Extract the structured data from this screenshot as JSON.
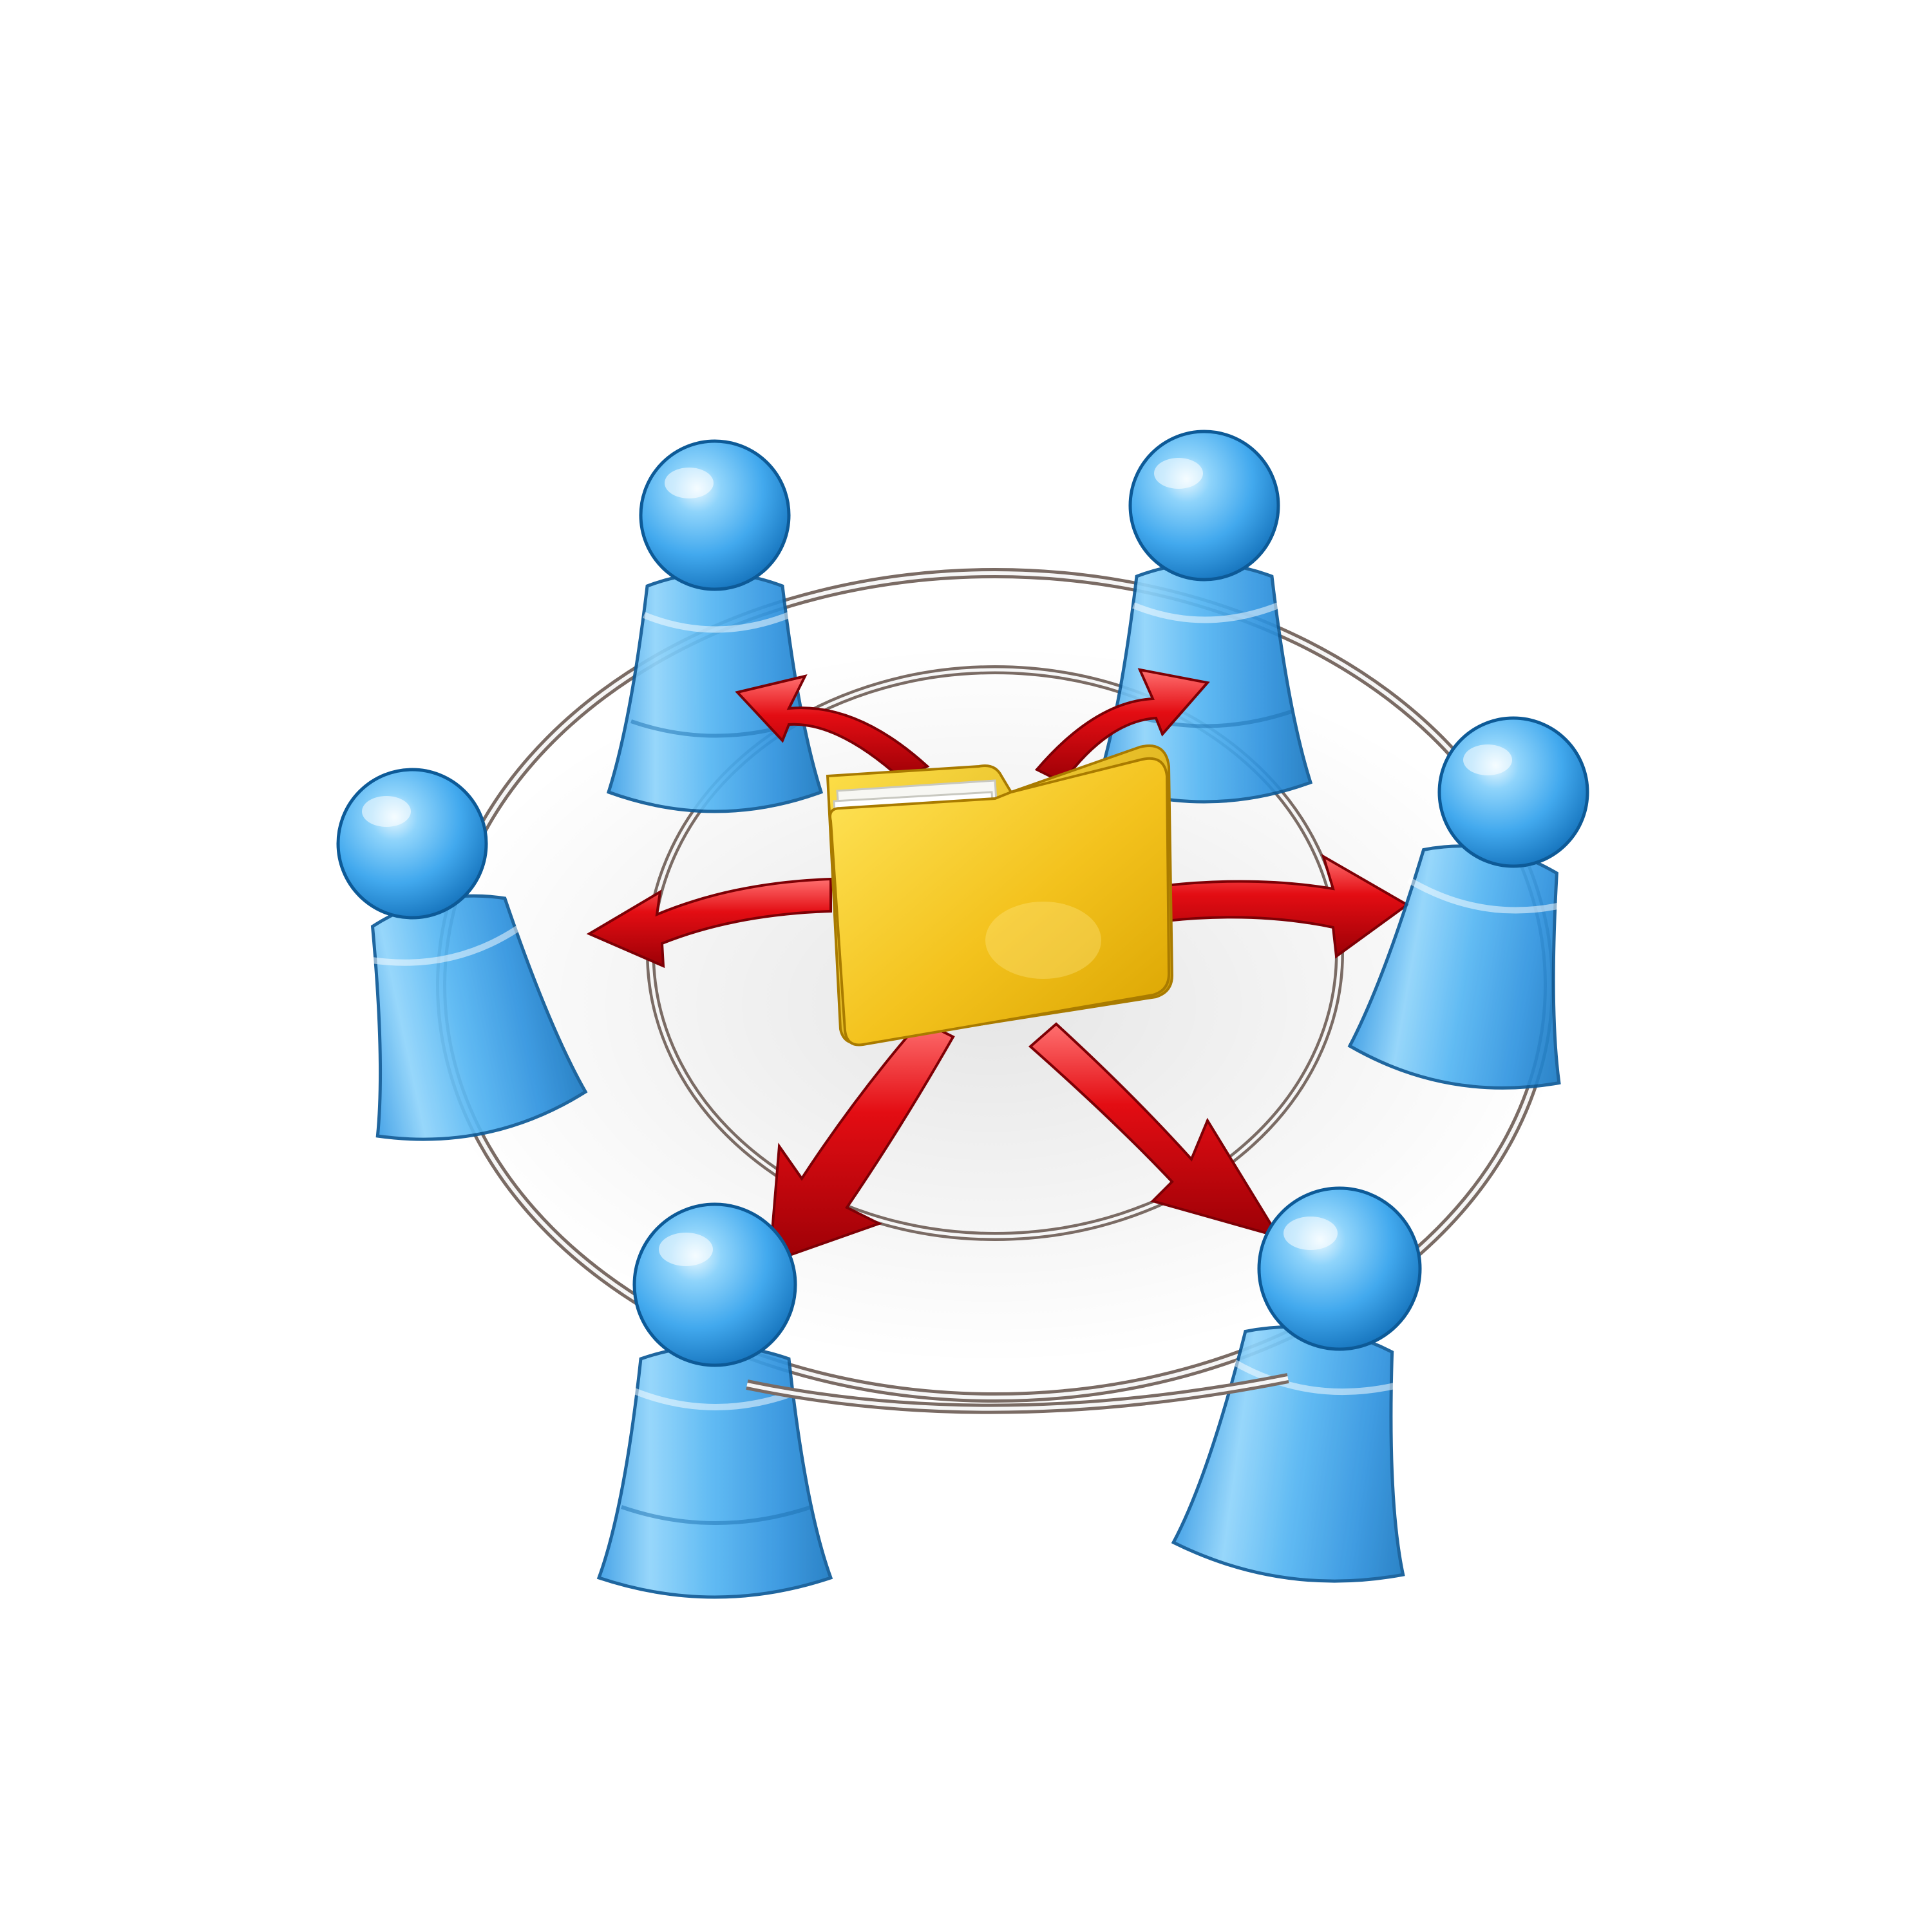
{
  "scene": {
    "background": "#ffffff",
    "colors": {
      "figure_light": "#8fd4fb",
      "figure_mid": "#42a9ee",
      "figure_dark": "#1674bd",
      "figure_outline": "#0d5a97",
      "arrow_light": "#ff6a6a",
      "arrow_mid": "#e30d13",
      "arrow_dark": "#9c0006",
      "folder_light": "#ffe23a",
      "folder_mid": "#f3c21d",
      "folder_dark": "#c99500",
      "paper": "#f7f7f3",
      "ring_light": "#f4f4f4",
      "ring_dark": "#7a6b64"
    },
    "elements": {
      "center": "folder-icon",
      "arrows": "curved-arrow-icon",
      "figures": "person-pawn-icon",
      "rings": "connection-ring"
    },
    "figure_count": 6,
    "arrow_count": 6
  }
}
